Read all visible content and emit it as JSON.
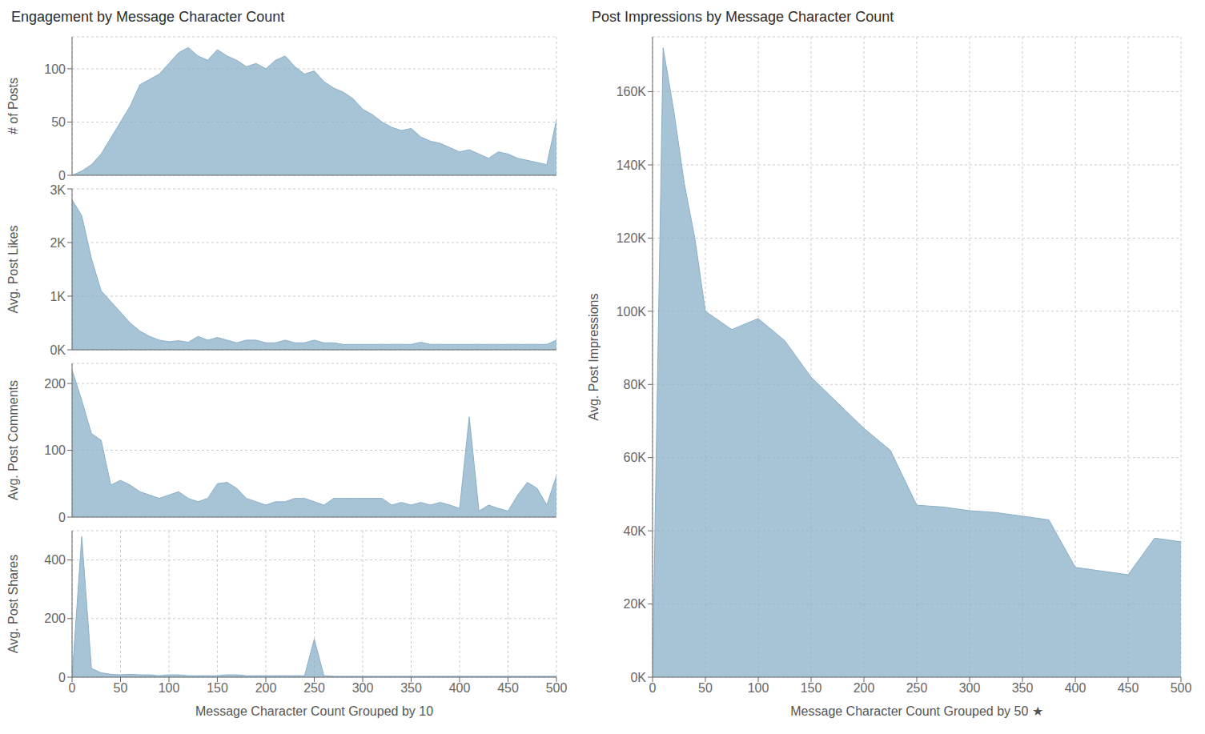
{
  "chart_data": [
    {
      "type": "area",
      "title": "Engagement by Message Character Count",
      "ylabel": "# of Posts",
      "color": "#8aafc8",
      "grid": true,
      "tick_labels": "y",
      "x": [
        0,
        10,
        20,
        30,
        40,
        50,
        60,
        70,
        80,
        90,
        100,
        110,
        120,
        130,
        140,
        150,
        160,
        170,
        180,
        190,
        200,
        210,
        220,
        230,
        240,
        250,
        260,
        270,
        280,
        290,
        300,
        310,
        320,
        330,
        340,
        350,
        360,
        370,
        380,
        390,
        400,
        410,
        420,
        430,
        440,
        450,
        460,
        470,
        480,
        490,
        500
      ],
      "values": [
        0,
        4,
        10,
        20,
        35,
        50,
        65,
        85,
        90,
        95,
        105,
        115,
        120,
        112,
        108,
        118,
        112,
        108,
        102,
        105,
        100,
        108,
        112,
        102,
        95,
        98,
        88,
        82,
        78,
        72,
        62,
        57,
        50,
        45,
        42,
        44,
        36,
        32,
        30,
        26,
        22,
        24,
        20,
        16,
        22,
        20,
        16,
        14,
        12,
        10,
        52
      ],
      "xlim": [
        0,
        500
      ],
      "xticks": [
        0,
        50,
        100,
        150,
        200,
        250,
        300,
        350,
        400,
        450,
        500
      ],
      "ylim": [
        0,
        130
      ],
      "yticks": [
        0,
        50,
        100
      ]
    },
    {
      "type": "area",
      "ylabel": "Avg. Post Likes",
      "color": "#8aafc8",
      "grid": true,
      "tick_labels": "y",
      "x": [
        0,
        10,
        20,
        30,
        40,
        50,
        60,
        70,
        80,
        90,
        100,
        110,
        120,
        130,
        140,
        150,
        160,
        170,
        180,
        190,
        200,
        210,
        220,
        230,
        240,
        250,
        260,
        270,
        280,
        290,
        300,
        310,
        320,
        330,
        340,
        350,
        360,
        370,
        380,
        390,
        400,
        410,
        420,
        430,
        440,
        450,
        460,
        470,
        480,
        490,
        500
      ],
      "values": [
        2800,
        2500,
        1700,
        1100,
        900,
        700,
        500,
        350,
        250,
        180,
        150,
        170,
        140,
        250,
        180,
        230,
        180,
        130,
        180,
        180,
        130,
        130,
        180,
        130,
        130,
        180,
        130,
        130,
        100,
        100,
        100,
        100,
        100,
        100,
        100,
        100,
        140,
        100,
        100,
        100,
        100,
        100,
        100,
        100,
        100,
        100,
        100,
        100,
        100,
        100,
        180
      ],
      "xlim": [
        0,
        500
      ],
      "xticks": [
        0,
        50,
        100,
        150,
        200,
        250,
        300,
        350,
        400,
        450,
        500
      ],
      "ylim": [
        0,
        3000
      ],
      "yticks": [
        {
          "value": 0,
          "label": "0K"
        },
        {
          "value": 1000,
          "label": "1K"
        },
        {
          "value": 2000,
          "label": "2K"
        },
        {
          "value": 3000,
          "label": "3K"
        }
      ]
    },
    {
      "type": "area",
      "ylabel": "Avg. Post Comments",
      "color": "#8aafc8",
      "grid": true,
      "tick_labels": "y",
      "x": [
        0,
        10,
        20,
        30,
        40,
        50,
        60,
        70,
        80,
        90,
        100,
        110,
        120,
        130,
        140,
        150,
        160,
        170,
        180,
        190,
        200,
        210,
        220,
        230,
        240,
        250,
        260,
        270,
        280,
        290,
        300,
        310,
        320,
        330,
        340,
        350,
        360,
        370,
        380,
        390,
        400,
        410,
        420,
        430,
        440,
        450,
        460,
        470,
        480,
        490,
        500
      ],
      "values": [
        220,
        175,
        125,
        115,
        48,
        55,
        48,
        38,
        33,
        28,
        33,
        38,
        28,
        23,
        28,
        50,
        52,
        43,
        28,
        23,
        18,
        23,
        23,
        28,
        28,
        23,
        18,
        28,
        28,
        28,
        28,
        28,
        28,
        18,
        22,
        18,
        22,
        18,
        22,
        18,
        13,
        150,
        9,
        18,
        13,
        9,
        33,
        52,
        43,
        18,
        62
      ],
      "xlim": [
        0,
        500
      ],
      "xticks": [
        0,
        50,
        100,
        150,
        200,
        250,
        300,
        350,
        400,
        450,
        500
      ],
      "ylim": [
        0,
        230
      ],
      "yticks": [
        0,
        100,
        200
      ]
    },
    {
      "type": "area",
      "xlabel": "Message Character Count Grouped by 10",
      "ylabel": "Avg. Post Shares",
      "color": "#8aafc8",
      "grid": true,
      "x": [
        0,
        10,
        20,
        30,
        40,
        50,
        60,
        70,
        80,
        90,
        100,
        110,
        120,
        130,
        140,
        150,
        160,
        170,
        180,
        190,
        200,
        210,
        220,
        230,
        240,
        250,
        260,
        270,
        280,
        290,
        300,
        310,
        320,
        330,
        340,
        350,
        360,
        370,
        380,
        390,
        400,
        410,
        420,
        430,
        440,
        450,
        460,
        470,
        480,
        490,
        500
      ],
      "values": [
        0,
        480,
        30,
        15,
        10,
        8,
        10,
        8,
        8,
        5,
        8,
        8,
        5,
        5,
        5,
        5,
        8,
        8,
        5,
        5,
        5,
        5,
        5,
        5,
        5,
        130,
        5,
        3,
        3,
        3,
        3,
        3,
        3,
        3,
        3,
        3,
        3,
        3,
        3,
        3,
        3,
        3,
        3,
        3,
        3,
        3,
        3,
        3,
        3,
        3,
        3
      ],
      "xlim": [
        0,
        500
      ],
      "xticks": [
        0,
        50,
        100,
        150,
        200,
        250,
        300,
        350,
        400,
        450,
        500
      ],
      "ylim": [
        0,
        500
      ],
      "yticks": [
        0,
        200,
        400
      ]
    },
    {
      "type": "area",
      "title": "Post Impressions by Message Character Count",
      "xlabel": "Message Character Count Grouped by 50 ★",
      "ylabel": "Avg. Post Impressions",
      "color": "#8aafc8",
      "grid": true,
      "x": [
        0,
        10,
        20,
        30,
        40,
        50,
        75,
        100,
        125,
        150,
        175,
        200,
        225,
        250,
        275,
        300,
        325,
        350,
        375,
        400,
        425,
        450,
        475,
        500
      ],
      "values": [
        1000,
        172000,
        155000,
        135000,
        120000,
        100000,
        95000,
        98000,
        92000,
        82000,
        75000,
        68000,
        62000,
        47000,
        46500,
        45500,
        45000,
        44000,
        43000,
        30000,
        29000,
        28000,
        38000,
        37000
      ],
      "xlim": [
        0,
        500
      ],
      "xticks": [
        0,
        50,
        100,
        150,
        200,
        250,
        300,
        350,
        400,
        450,
        500
      ],
      "ylim": [
        0,
        175000
      ],
      "yticks": [
        {
          "value": 0,
          "label": "0K"
        },
        {
          "value": 20000,
          "label": "20K"
        },
        {
          "value": 40000,
          "label": "40K"
        },
        {
          "value": 60000,
          "label": "60K"
        },
        {
          "value": 80000,
          "label": "80K"
        },
        {
          "value": 100000,
          "label": "100K"
        },
        {
          "value": 120000,
          "label": "120K"
        },
        {
          "value": 140000,
          "label": "140K"
        },
        {
          "value": 160000,
          "label": "160K"
        }
      ]
    }
  ]
}
